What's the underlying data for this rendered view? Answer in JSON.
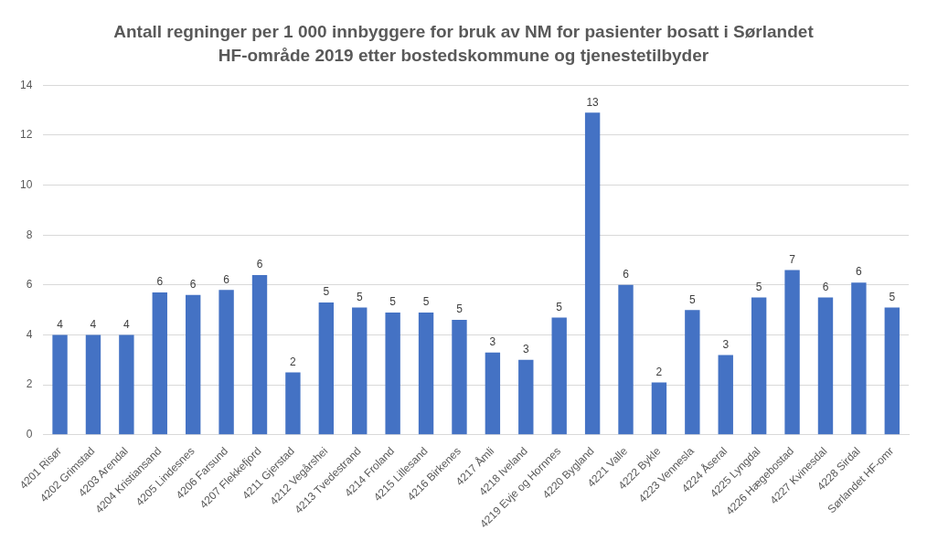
{
  "chart_data": {
    "type": "bar",
    "title": "Antall regninger per 1 000 innbyggere for bruk av NM for pasienter bosatt i Sørlandet HF-område 2019 etter bostedskommune og tjenestetilbyder",
    "categories": [
      "4201 Risør",
      "4202 Grimstad",
      "4203 Arendal",
      "4204 Kristiansand",
      "4205 Lindesnes",
      "4206 Farsund",
      "4207 Flekkefjord",
      "4211 Gjerstad",
      "4212 Vegårshei",
      "4213 Tvedestrand",
      "4214 Froland",
      "4215 Lillesand",
      "4216 Birkenes",
      "4217 Åmli",
      "4218 Iveland",
      "4219 Evje og Hornnes",
      "4220 Bygland",
      "4221 Valle",
      "4222 Bykle",
      "4223 Vennesla",
      "4224 Åseral",
      "4225 Lyngdal",
      "4226 Hægebostad",
      "4227 Kvinesdal",
      "4228 Sirdal",
      "Sørlandet HF-omr"
    ],
    "values": [
      4.0,
      4.0,
      4.0,
      5.7,
      5.6,
      5.8,
      6.4,
      2.5,
      5.3,
      5.1,
      4.9,
      4.9,
      4.6,
      3.3,
      3.0,
      4.7,
      12.9,
      6.0,
      2.1,
      5.0,
      3.2,
      5.5,
      6.6,
      5.5,
      6.1,
      5.1
    ],
    "value_labels": [
      "4",
      "4",
      "4",
      "6",
      "6",
      "6",
      "6",
      "2",
      "5",
      "5",
      "5",
      "5",
      "5",
      "3",
      "3",
      "5",
      "13",
      "6",
      "2",
      "5",
      "3",
      "5",
      "7",
      "6",
      "6",
      "5"
    ],
    "color": "#4472c4",
    "ylim": [
      0,
      14
    ],
    "yticks": [
      0,
      2,
      4,
      6,
      8,
      10,
      12,
      14
    ],
    "grid": "y",
    "legend": false
  }
}
